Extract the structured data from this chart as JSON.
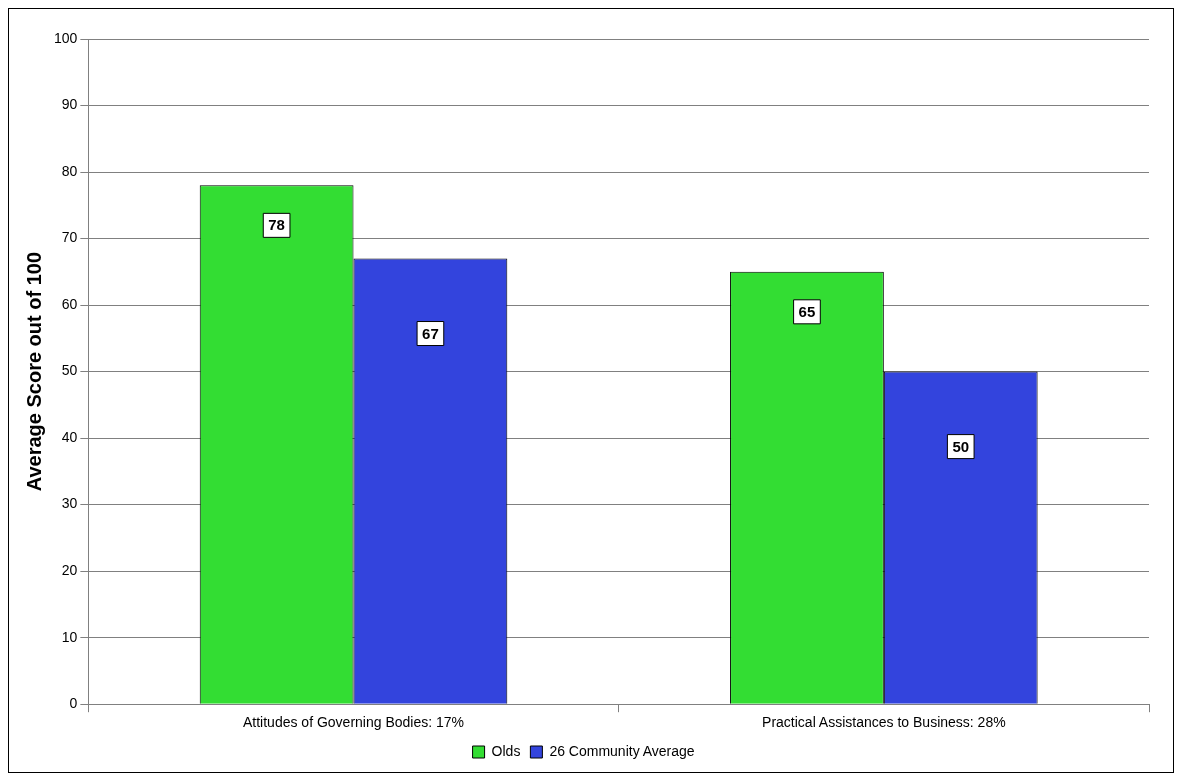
{
  "chart_data": {
    "type": "bar",
    "ylabel": "Average Score out of 100",
    "categories": [
      "Attitudes of Governing Bodies: 17%",
      "Practical Assistances to Business: 28%"
    ],
    "series": [
      {
        "name": "Olds",
        "color": "#33dd33",
        "values": [
          78,
          65
        ]
      },
      {
        "name": "26 Community Average",
        "color": "#3344dd",
        "values": [
          67,
          50
        ]
      }
    ],
    "ylim": [
      0,
      100
    ],
    "yticks": [
      0,
      10,
      20,
      30,
      40,
      50,
      60,
      70,
      80,
      90,
      100
    ],
    "grid": "y",
    "legend": "bottom",
    "data_labels": true
  }
}
